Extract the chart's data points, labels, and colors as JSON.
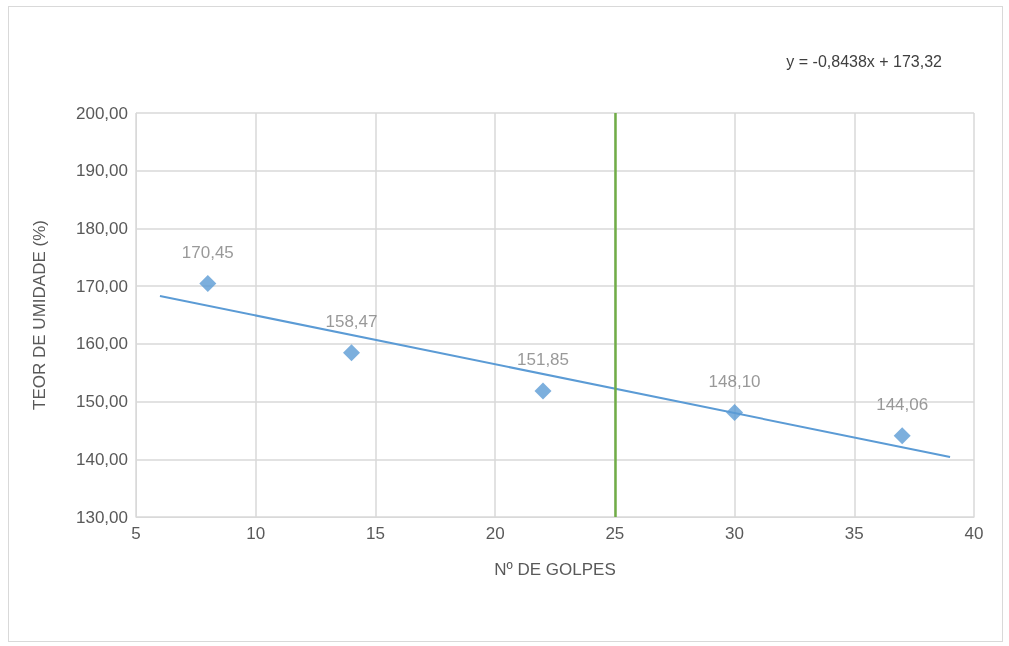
{
  "chart_data": {
    "type": "scatter",
    "xlabel": "Nº DE GOLPES",
    "ylabel": "TEOR DE UMIDADE (%)",
    "xlim": [
      5,
      40
    ],
    "xticks": [
      5,
      10,
      15,
      20,
      25,
      30,
      35,
      40
    ],
    "ylim": [
      130,
      200
    ],
    "yticks": [
      {
        "value": 130,
        "label": "130,00"
      },
      {
        "value": 140,
        "label": "140,00"
      },
      {
        "value": 150,
        "label": "150,00"
      },
      {
        "value": 160,
        "label": "160,00"
      },
      {
        "value": 170,
        "label": "170,00"
      },
      {
        "value": 180,
        "label": "180,00"
      },
      {
        "value": 190,
        "label": "190,00"
      },
      {
        "value": 200,
        "label": "200,00"
      }
    ],
    "grid": true,
    "series": [
      {
        "color": "#5b9bd5",
        "marker": "diamond",
        "x": [
          8,
          14,
          22,
          30,
          37
        ],
        "values": [
          170.45,
          158.47,
          151.85,
          148.1,
          144.06
        ],
        "value_labels": [
          "170,45",
          "158,47",
          "151,85",
          "148,10",
          "144,06"
        ]
      },
      {
        "type": "line",
        "color": "#5b9bd5",
        "x": [
          6,
          39
        ],
        "values": [
          168.3,
          140.4
        ],
        "line_style": "solid",
        "marker": "none"
      }
    ],
    "ref_lines": [
      {
        "axis": "x",
        "value": 25,
        "color": "#70ad47"
      }
    ],
    "annotations": [
      "y = -0,8438x + 173,32"
    ]
  }
}
